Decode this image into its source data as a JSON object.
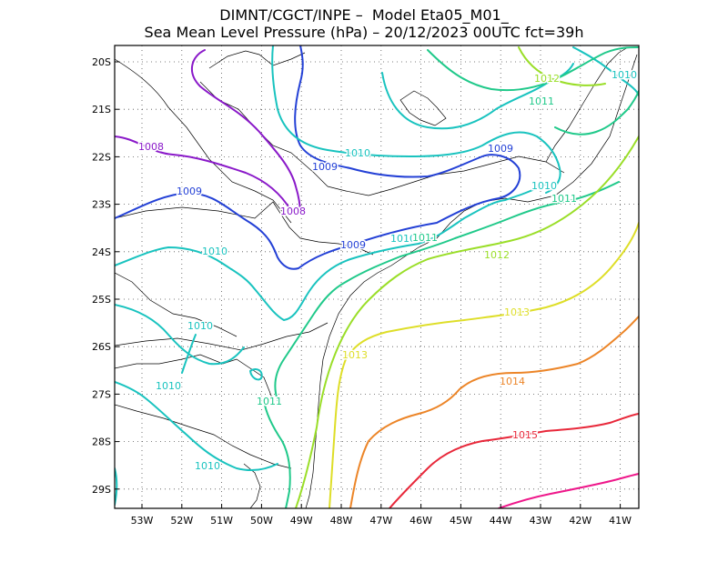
{
  "title_line1": "DIMNT/CGCT/INPE –  Model Eta05_M01_",
  "title_line2": "Sea Mean Level Pressure (hPa) – 20/12/2023 00UTC fct=39h",
  "lat_labels": [
    "20S",
    "21S",
    "22S",
    "23S",
    "24S",
    "25S",
    "26S",
    "27S",
    "28S",
    "29S"
  ],
  "lon_labels": [
    "53W",
    "52W",
    "51W",
    "50W",
    "49W",
    "48W",
    "47W",
    "46W",
    "45W",
    "44W",
    "43W",
    "42W",
    "41W"
  ],
  "isobars": [
    {
      "id": "1008",
      "label": "1008",
      "color": "#8a19c9",
      "labels": [
        {
          "text": "1008"
        },
        {
          "text": "1008"
        }
      ]
    },
    {
      "id": "1009",
      "label": "1009",
      "color": "#2441d6",
      "labels": [
        {
          "text": "1009"
        },
        {
          "text": "1009"
        },
        {
          "text": "1009"
        },
        {
          "text": "1009"
        }
      ]
    },
    {
      "id": "1010",
      "label": "1010",
      "color": "#19c3bf",
      "labels": [
        {
          "text": "1010"
        },
        {
          "text": "1010"
        },
        {
          "text": "1010"
        },
        {
          "text": "1010"
        },
        {
          "text": "1010"
        },
        {
          "text": "1010"
        },
        {
          "text": "1010"
        },
        {
          "text": "1010"
        }
      ]
    },
    {
      "id": "1011",
      "label": "1011",
      "color": "#20c98a",
      "labels": [
        {
          "text": "1011"
        },
        {
          "text": "1011"
        },
        {
          "text": "1011"
        },
        {
          "text": "1011"
        }
      ]
    },
    {
      "id": "1012",
      "label": "1012",
      "color": "#9ade28",
      "labels": [
        {
          "text": "1012"
        },
        {
          "text": "1012"
        }
      ]
    },
    {
      "id": "1013",
      "label": "1013",
      "color": "#dede28",
      "labels": [
        {
          "text": "1013"
        },
        {
          "text": "1013"
        }
      ]
    },
    {
      "id": "1014",
      "label": "1014",
      "color": "#ec8528",
      "labels": [
        {
          "text": "1014"
        }
      ]
    },
    {
      "id": "1015",
      "label": "1015",
      "color": "#e8283a",
      "labels": [
        {
          "text": "1015"
        }
      ]
    },
    {
      "id": "1016",
      "label": "",
      "color": "#ee178a",
      "labels": []
    }
  ]
}
